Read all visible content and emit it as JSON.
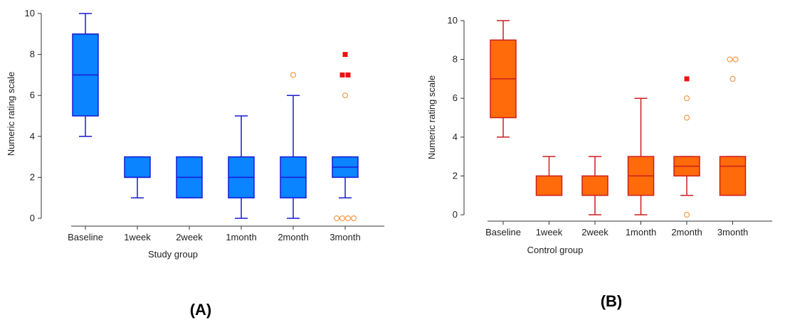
{
  "chart_data": [
    {
      "type": "box",
      "panel_label": "(A)",
      "xlabel": "Study group",
      "ylabel": "Numeric rating scale",
      "ylim": [
        0,
        10
      ],
      "yticks": [
        0,
        2,
        4,
        6,
        8,
        10
      ],
      "categories": [
        "Baseline",
        "1week",
        "2week",
        "1month",
        "2month",
        "3month"
      ],
      "colors": {
        "fill": "#0a84ff",
        "stroke": "#1a1ad6",
        "outlier": "#f39c4a",
        "far_outlier": "#ee1111"
      },
      "boxes": [
        {
          "min": 4,
          "q1": 5,
          "median": 7,
          "q3": 9,
          "max": 10,
          "outliers": [],
          "far_outliers": []
        },
        {
          "min": 1,
          "q1": 2,
          "median": 2,
          "q3": 3,
          "max": 3,
          "outliers": [],
          "far_outliers": []
        },
        {
          "min": 1,
          "q1": 1,
          "median": 2,
          "q3": 3,
          "max": 3,
          "outliers": [],
          "far_outliers": []
        },
        {
          "min": 0,
          "q1": 1,
          "median": 2,
          "q3": 3,
          "max": 5,
          "outliers": [],
          "far_outliers": []
        },
        {
          "min": 0,
          "q1": 1,
          "median": 2,
          "q3": 3,
          "max": 6,
          "outliers": [
            7
          ],
          "far_outliers": []
        },
        {
          "min": 1,
          "q1": 2,
          "median": 2.5,
          "q3": 3,
          "max": 3,
          "outliers": [
            6,
            0,
            0,
            0,
            0
          ],
          "far_outliers": [
            8,
            7,
            7
          ]
        }
      ]
    },
    {
      "type": "box",
      "panel_label": "(B)",
      "xlabel": "Control group",
      "ylabel": "Numeric rating scale",
      "ylim": [
        0,
        10
      ],
      "yticks": [
        0,
        2,
        4,
        6,
        8,
        10
      ],
      "categories": [
        "Baseline",
        "1week",
        "2week",
        "1month",
        "2month",
        "3month"
      ],
      "colors": {
        "fill": "#ff6a0a",
        "stroke": "#cc1f1f",
        "outlier": "#f39c4a",
        "far_outlier": "#ee1111"
      },
      "boxes": [
        {
          "min": 4,
          "q1": 5,
          "median": 7,
          "q3": 9,
          "max": 10,
          "outliers": [],
          "far_outliers": []
        },
        {
          "min": 1,
          "q1": 1,
          "median": 1,
          "q3": 2,
          "max": 3,
          "outliers": [],
          "far_outliers": []
        },
        {
          "min": 0,
          "q1": 1,
          "median": 1,
          "q3": 2,
          "max": 3,
          "outliers": [],
          "far_outliers": []
        },
        {
          "min": 0,
          "q1": 1,
          "median": 2,
          "q3": 3,
          "max": 6,
          "outliers": [],
          "far_outliers": []
        },
        {
          "min": 1,
          "q1": 2,
          "median": 2.5,
          "q3": 3,
          "max": 3,
          "outliers": [
            6,
            5,
            0
          ],
          "far_outliers": [
            7
          ]
        },
        {
          "min": 1,
          "q1": 1,
          "median": 2.5,
          "q3": 3,
          "max": 3,
          "outliers": [
            8,
            8,
            7
          ],
          "far_outliers": []
        }
      ]
    }
  ]
}
